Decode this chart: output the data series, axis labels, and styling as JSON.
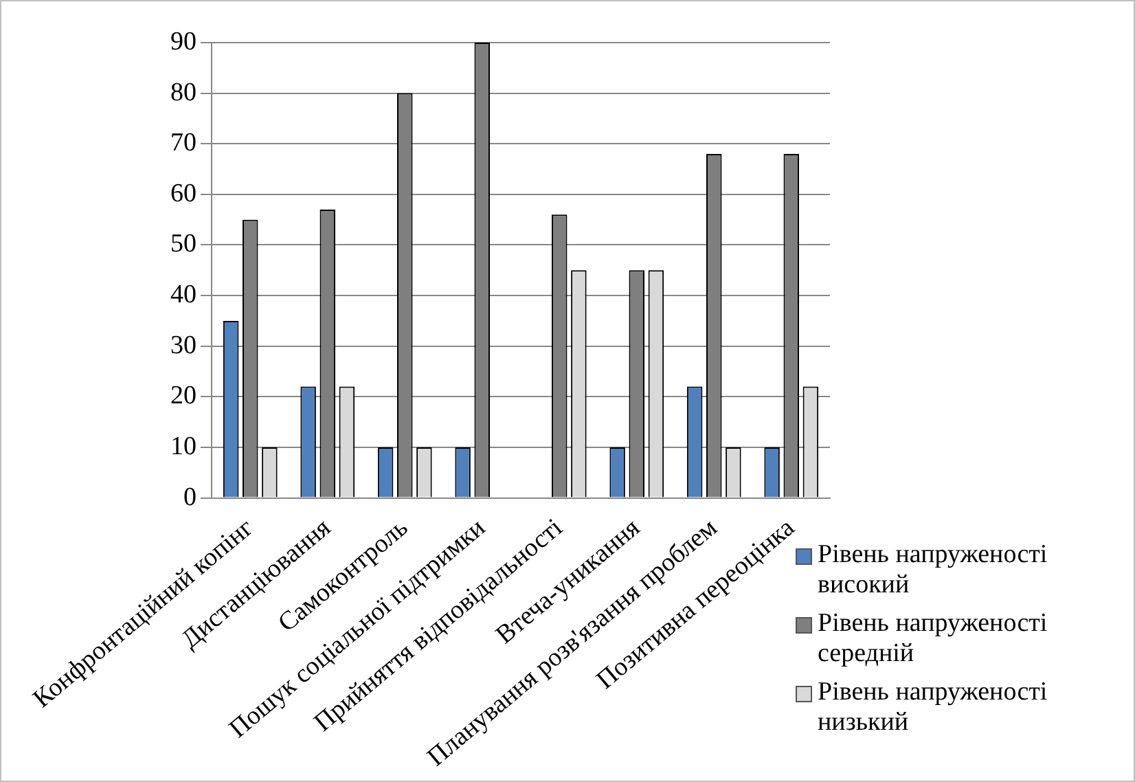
{
  "chart_data": {
    "type": "bar",
    "categories": [
      "Конфронтаційний копінг",
      "Дистанціювання",
      "Самоконтроль",
      "Пошук соціальної підтримки",
      "Прийняття відповідальності",
      "Втеча-уникання",
      "Планування розв'язання проблем",
      "Позитивна переоцінка"
    ],
    "series": [
      {
        "name": "Рівень напруженості високий",
        "color": "#4f81bd",
        "values": [
          35,
          22,
          10,
          10,
          0,
          10,
          22,
          10
        ]
      },
      {
        "name": "Рівень напруженості середній",
        "color": "#7f7f7f",
        "values": [
          55,
          57,
          80,
          90,
          56,
          45,
          68,
          68
        ]
      },
      {
        "name": "Рівень напруженості низький",
        "color": "#d9d9d9",
        "values": [
          10,
          22,
          10,
          0,
          45,
          45,
          10,
          22
        ]
      }
    ],
    "ylim": [
      0,
      90
    ],
    "yticks": [
      0,
      10,
      20,
      30,
      40,
      50,
      60,
      70,
      80,
      90
    ],
    "grid": "y",
    "legend": "right"
  }
}
